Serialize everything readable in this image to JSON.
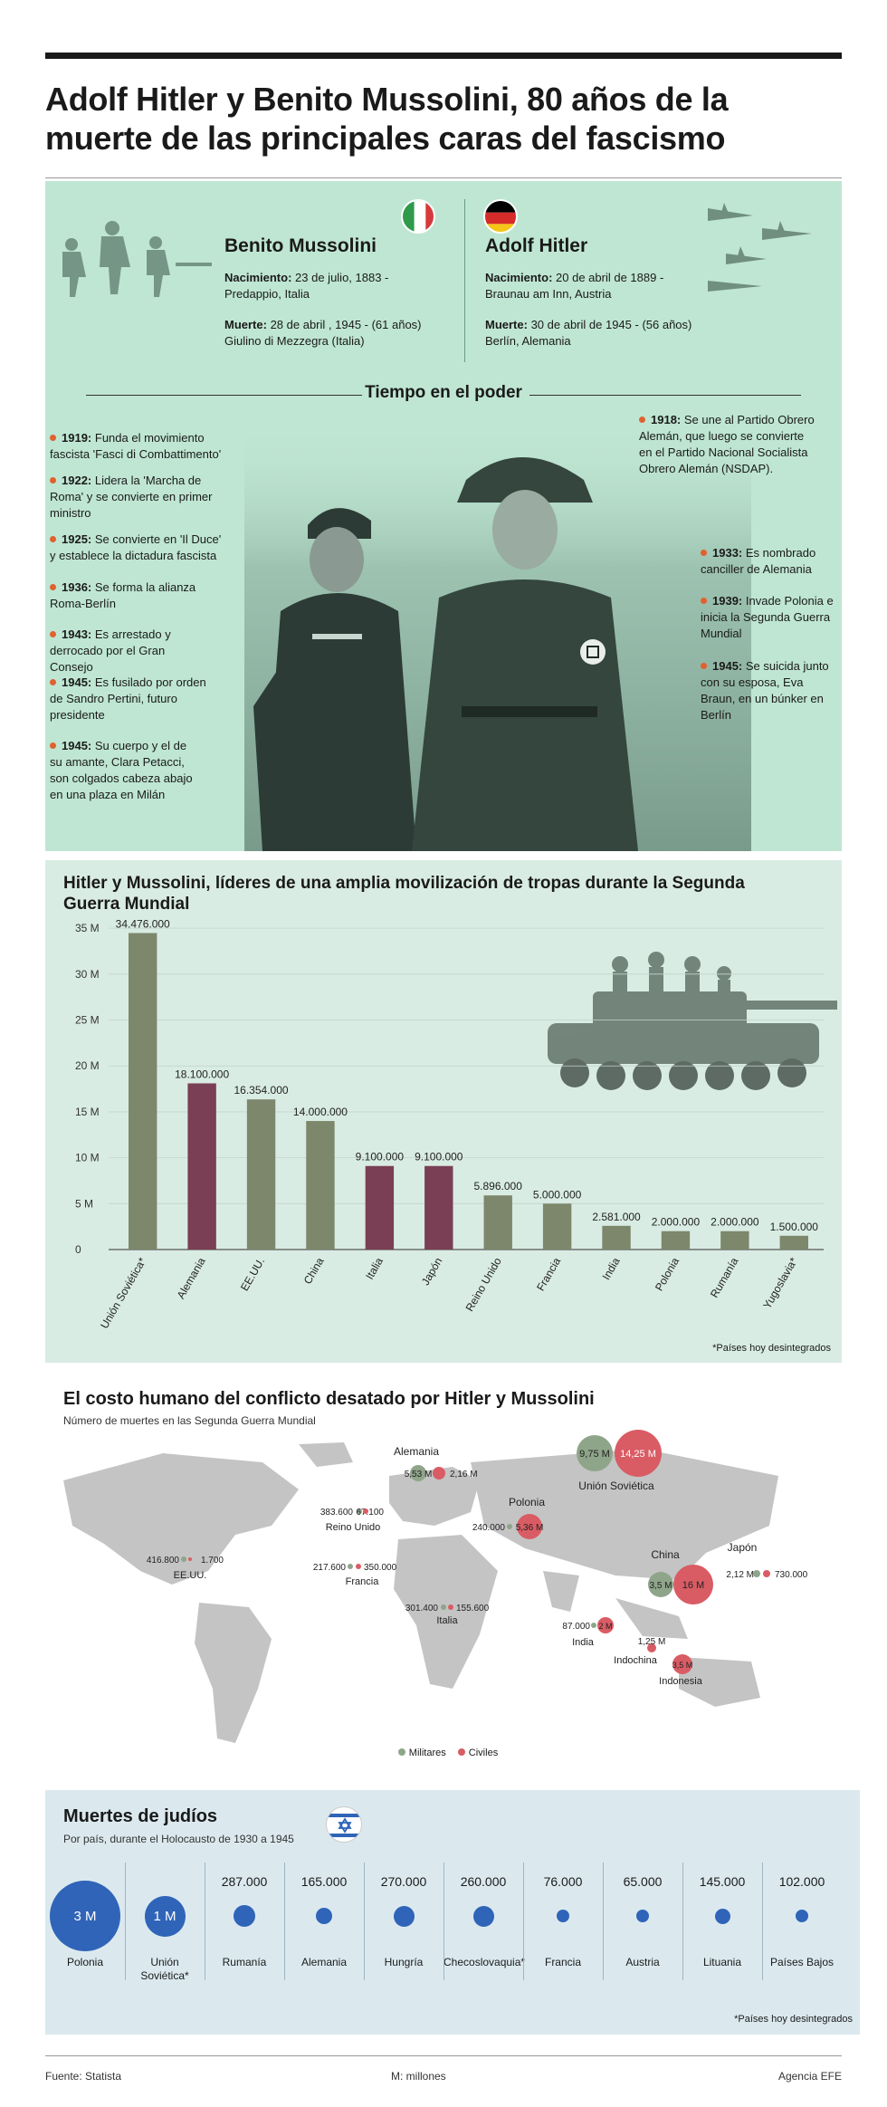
{
  "title": "Adolf Hitler y Benito Mussolini, 80 años de la muerte de las principales caras del fascismo",
  "leaders": {
    "mussolini": {
      "name": "Benito Mussolini",
      "birth_label": "Nacimiento:",
      "birth": "23 de julio, 1883 - Predappio, Italia",
      "death_label": "Muerte:",
      "death": "28 de abril , 1945 - (61 años) Giulino di Mezzegra (Italia)"
    },
    "hitler": {
      "name": "Adolf Hitler",
      "birth_label": "Nacimiento:",
      "birth": "20 de abril de 1889 - Braunau am Inn, Austria",
      "death_label": "Muerte:",
      "death": "30 de abril de 1945 - (56 años) Berlín, Alemania"
    }
  },
  "timeline": {
    "title": "Tiempo en el poder",
    "mussolini_events": [
      {
        "year": "1919:",
        "text": "Funda el movimiento fascista 'Fasci di Combattimento'"
      },
      {
        "year": "1922:",
        "text": "Lidera la 'Marcha de Roma' y se convierte en primer ministro"
      },
      {
        "year": "1925:",
        "text": "Se convierte en 'Il Duce' y establece la dictadura fascista"
      },
      {
        "year": "1936:",
        "text": "Se forma la alianza Roma-Berlín"
      },
      {
        "year": "1943:",
        "text": "Es arrestado y derrocado por el Gran Consejo"
      },
      {
        "year": "1945:",
        "text": "Es fusilado por orden de Sandro Pertini, futuro presidente"
      },
      {
        "year": "1945:",
        "text": "Su cuerpo y el de su amante, Clara Petacci, son colgados cabeza abajo en una plaza en Milán"
      }
    ],
    "hitler_events": [
      {
        "year": "1918:",
        "text": "Se une al Partido Obrero Alemán, que luego se convierte en el Partido Nacional Socialista Obrero Alemán (NSDAP)."
      },
      {
        "year": "1933:",
        "text": "Es nombrado canciller de Alemania"
      },
      {
        "year": "1939:",
        "text": "Invade Polonia e inicia la Segunda Guerra Mundial"
      },
      {
        "year": "1945:",
        "text": "Se suicida junto con su esposa, Eva Braun, en un búnker en Berlín"
      }
    ]
  },
  "chart_data": {
    "type": "bar",
    "title": "Hitler y Mussolini, líderes de una amplia movilización de tropas durante la Segunda Guerra Mundial",
    "categories": [
      "Unión Soviética*",
      "Alemania",
      "EE.UU.",
      "China",
      "Italia",
      "Japón",
      "Reino Unido",
      "Francia",
      "India",
      "Polonia",
      "Rumanía",
      "Yugoslavia*"
    ],
    "values": [
      34476000,
      18100000,
      16354000,
      14000000,
      9100000,
      9100000,
      5896000,
      5000000,
      2581000,
      2000000,
      2000000,
      1500000
    ],
    "value_labels": [
      "34.476.000",
      "18.100.000",
      "16.354.000",
      "14.000.000",
      "9.100.000",
      "9.100.000",
      "5.896.000",
      "5.000.000",
      "2.581.000",
      "2.000.000",
      "2.000.000",
      "1.500.000"
    ],
    "highlight": [
      "Alemania",
      "Italia",
      "Japón"
    ],
    "colors": {
      "default": "#7d876b",
      "highlight": "#7a3f55"
    },
    "yticks": [
      0,
      5000000,
      10000000,
      15000000,
      20000000,
      25000000,
      30000000,
      35000000
    ],
    "ytick_labels": [
      "0",
      "5 M",
      "10 M",
      "15 M",
      "20 M",
      "25 M",
      "30 M",
      "35 M"
    ],
    "ylim": [
      0,
      36000000
    ],
    "note": "*Países hoy desintegrados"
  },
  "human_cost": {
    "title": "El costo humano del conflicto desatado por Hitler y Mussolini",
    "subtitle": "Número de muertes en las Segunda Guerra Mundial",
    "colors": {
      "military": "#8fa58a",
      "civil": "#d95c64",
      "land": "#c4c4c4"
    },
    "countries": [
      {
        "name": "Alemania",
        "military": "5,53 M",
        "civil": "2,16 M"
      },
      {
        "name": "Unión Soviética",
        "military": "9,75 M",
        "civil": "14,25 M"
      },
      {
        "name": "Reino Unido",
        "military": "383.600",
        "civil": "67.100"
      },
      {
        "name": "Polonia",
        "military": "240.000",
        "civil": "5,36 M"
      },
      {
        "name": "EE.UU.",
        "military": "416.800",
        "civil": "1.700"
      },
      {
        "name": "Francia",
        "military": "217.600",
        "civil": "350.000"
      },
      {
        "name": "China",
        "military": "3,5 M",
        "civil": "16 M"
      },
      {
        "name": "Japón",
        "military": "2,12 M",
        "civil": "730.000"
      },
      {
        "name": "Italia",
        "military": "301.400",
        "civil": "155.600"
      },
      {
        "name": "India",
        "military": "87.000",
        "civil": "2 M"
      },
      {
        "name": "Indochina",
        "military": "",
        "civil": "1,25 M"
      },
      {
        "name": "Indonesia",
        "military": "",
        "civil": "3,5 M"
      }
    ],
    "legend": {
      "military": "Militares",
      "civil": "Civiles"
    }
  },
  "jews": {
    "title": "Muertes de judíos",
    "subtitle": "Por país, durante el Holocausto de 1930 a 1945",
    "color": "#2f64b8",
    "items": [
      {
        "country": "Polonia",
        "value": "3 M",
        "number": 3000000
      },
      {
        "country": "Unión Soviética*",
        "value": "1 M",
        "number": 1000000
      },
      {
        "country": "Rumanía",
        "value": "287.000",
        "number": 287000
      },
      {
        "country": "Alemania",
        "value": "165.000",
        "number": 165000
      },
      {
        "country": "Hungría",
        "value": "270.000",
        "number": 270000
      },
      {
        "country": "Checoslovaquia*",
        "value": "260.000",
        "number": 260000
      },
      {
        "country": "Francia",
        "value": "76.000",
        "number": 76000
      },
      {
        "country": "Austria",
        "value": "65.000",
        "number": 65000
      },
      {
        "country": "Lituania",
        "value": "145.000",
        "number": 145000
      },
      {
        "country": "Países Bajos",
        "value": "102.000",
        "number": 102000
      }
    ],
    "note": "*Países hoy desintegrados"
  },
  "footer": {
    "source": "Fuente: Statista",
    "unit": "M: millones",
    "agency": "Agencia EFE"
  }
}
